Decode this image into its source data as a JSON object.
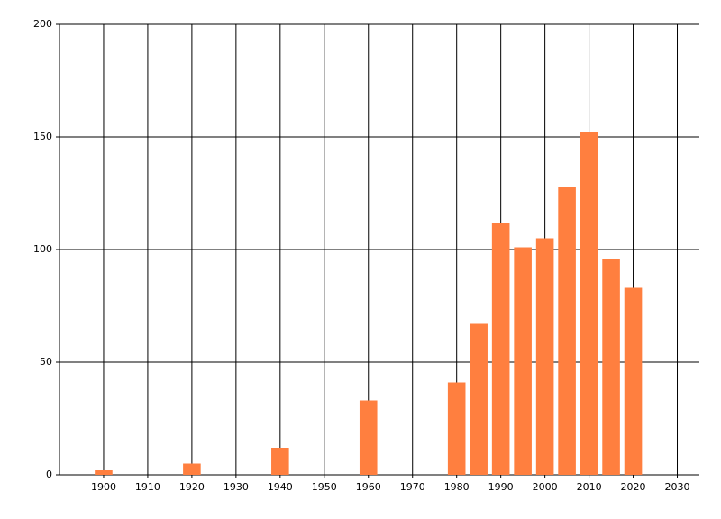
{
  "chart_data": {
    "type": "bar",
    "x": [
      1900,
      1920,
      1940,
      1960,
      1980,
      1985,
      1990,
      1995,
      2000,
      2005,
      2010,
      2015,
      2020
    ],
    "values": [
      2,
      5,
      12,
      33,
      41,
      67,
      112,
      101,
      105,
      128,
      152,
      96,
      83
    ],
    "color": "#ff7f3f",
    "xlim": [
      1890,
      2035
    ],
    "xticks": [
      1900,
      1910,
      1920,
      1930,
      1940,
      1950,
      1960,
      1970,
      1980,
      1990,
      2000,
      2010,
      2020,
      2030
    ],
    "ylim": [
      0,
      200
    ],
    "yticks": [
      0,
      50,
      100,
      150,
      200
    ],
    "grid": true
  }
}
